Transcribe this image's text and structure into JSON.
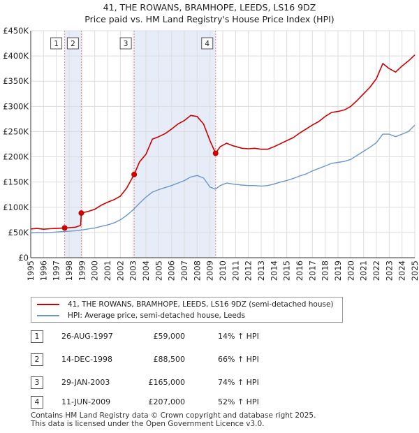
{
  "title_line1": "41, THE ROWANS, BRAMHOPE, LEEDS, LS16 9DZ",
  "title_line2": "Price paid vs. HM Land Registry's House Price Index (HPI)",
  "chart_data": {
    "type": "line",
    "x_range": [
      1995,
      2025
    ],
    "ylim": [
      0,
      450000
    ],
    "y_ticks": [
      0,
      50000,
      100000,
      150000,
      200000,
      250000,
      300000,
      350000,
      400000,
      450000
    ],
    "y_tick_labels": [
      "£0",
      "£50K",
      "£100K",
      "£150K",
      "£200K",
      "£250K",
      "£300K",
      "£350K",
      "£400K",
      "£450K"
    ],
    "x_ticks": [
      1995,
      1996,
      1997,
      1998,
      1999,
      2000,
      2001,
      2002,
      2003,
      2004,
      2005,
      2006,
      2007,
      2008,
      2009,
      2010,
      2011,
      2012,
      2013,
      2014,
      2015,
      2016,
      2017,
      2018,
      2019,
      2020,
      2021,
      2022,
      2023,
      2024,
      2025
    ],
    "grid": true,
    "shaded_ranges": [
      [
        1997.65,
        1998.95
      ],
      [
        2003.08,
        2009.44
      ]
    ],
    "series": [
      {
        "name": "41, THE ROWANS, BRAMHOPE, LEEDS, LS16 9DZ (semi-detached house)",
        "color": "#cc0000",
        "points": [
          [
            1995,
            57000
          ],
          [
            1995.5,
            58000
          ],
          [
            1996,
            56500
          ],
          [
            1996.5,
            57500
          ],
          [
            1997,
            58000
          ],
          [
            1997.65,
            59000
          ],
          [
            1998,
            59500
          ],
          [
            1998.5,
            60500
          ],
          [
            1998.9,
            64000
          ],
          [
            1998.95,
            88500
          ],
          [
            1999.5,
            92000
          ],
          [
            2000,
            96000
          ],
          [
            2000.5,
            104000
          ],
          [
            2001,
            110000
          ],
          [
            2001.5,
            115000
          ],
          [
            2002,
            122000
          ],
          [
            2002.5,
            138000
          ],
          [
            2003.08,
            165000
          ],
          [
            2003.5,
            190000
          ],
          [
            2004,
            205000
          ],
          [
            2004.5,
            235000
          ],
          [
            2005,
            240000
          ],
          [
            2005.5,
            246000
          ],
          [
            2006,
            255000
          ],
          [
            2006.5,
            265000
          ],
          [
            2007,
            272000
          ],
          [
            2007.5,
            282000
          ],
          [
            2008,
            280000
          ],
          [
            2008.5,
            265000
          ],
          [
            2009,
            232000
          ],
          [
            2009.44,
            207000
          ],
          [
            2009.8,
            220000
          ],
          [
            2010.3,
            227000
          ],
          [
            2010.8,
            222000
          ],
          [
            2011.5,
            217000
          ],
          [
            2012,
            216000
          ],
          [
            2012.5,
            217000
          ],
          [
            2013,
            215000
          ],
          [
            2013.5,
            215000
          ],
          [
            2014,
            220000
          ],
          [
            2014.5,
            226000
          ],
          [
            2015,
            232000
          ],
          [
            2015.5,
            238000
          ],
          [
            2016,
            247000
          ],
          [
            2016.5,
            255000
          ],
          [
            2017,
            263000
          ],
          [
            2017.5,
            270000
          ],
          [
            2018,
            280000
          ],
          [
            2018.5,
            288000
          ],
          [
            2019,
            290000
          ],
          [
            2019.5,
            293000
          ],
          [
            2020,
            300000
          ],
          [
            2020.5,
            312000
          ],
          [
            2021,
            325000
          ],
          [
            2021.5,
            338000
          ],
          [
            2022,
            355000
          ],
          [
            2022.5,
            385000
          ],
          [
            2023,
            375000
          ],
          [
            2023.5,
            368000
          ],
          [
            2024,
            380000
          ],
          [
            2024.5,
            390000
          ],
          [
            2025,
            402000
          ]
        ]
      },
      {
        "name": "HPI: Average price, semi-detached house, Leeds",
        "color": "#6a96cc",
        "points": [
          [
            1995,
            49000
          ],
          [
            1995.5,
            50000
          ],
          [
            1996,
            49500
          ],
          [
            1996.5,
            50000
          ],
          [
            1997,
            51000
          ],
          [
            1997.65,
            52000
          ],
          [
            1998,
            52500
          ],
          [
            1998.5,
            53500
          ],
          [
            1999,
            55000
          ],
          [
            1999.5,
            57000
          ],
          [
            2000,
            59000
          ],
          [
            2000.5,
            62000
          ],
          [
            2001,
            65000
          ],
          [
            2001.5,
            69000
          ],
          [
            2002,
            75000
          ],
          [
            2002.5,
            84000
          ],
          [
            2003,
            95000
          ],
          [
            2003.5,
            108000
          ],
          [
            2004,
            120000
          ],
          [
            2004.5,
            130000
          ],
          [
            2005,
            135000
          ],
          [
            2005.5,
            139000
          ],
          [
            2006,
            143000
          ],
          [
            2006.5,
            148000
          ],
          [
            2007,
            153000
          ],
          [
            2007.5,
            160000
          ],
          [
            2008,
            163000
          ],
          [
            2008.5,
            158000
          ],
          [
            2009,
            140000
          ],
          [
            2009.44,
            136000
          ],
          [
            2009.8,
            143000
          ],
          [
            2010.3,
            148000
          ],
          [
            2010.8,
            146000
          ],
          [
            2011.5,
            144000
          ],
          [
            2012,
            143000
          ],
          [
            2012.5,
            143000
          ],
          [
            2013,
            142000
          ],
          [
            2013.5,
            143000
          ],
          [
            2014,
            146000
          ],
          [
            2014.5,
            150000
          ],
          [
            2015,
            153000
          ],
          [
            2015.5,
            157000
          ],
          [
            2016,
            162000
          ],
          [
            2016.5,
            166000
          ],
          [
            2017,
            172000
          ],
          [
            2017.5,
            177000
          ],
          [
            2018,
            182000
          ],
          [
            2018.5,
            187000
          ],
          [
            2019,
            189000
          ],
          [
            2019.5,
            191000
          ],
          [
            2020,
            195000
          ],
          [
            2020.5,
            203000
          ],
          [
            2021,
            211000
          ],
          [
            2021.5,
            219000
          ],
          [
            2022,
            228000
          ],
          [
            2022.5,
            245000
          ],
          [
            2023,
            245000
          ],
          [
            2023.5,
            240000
          ],
          [
            2024,
            245000
          ],
          [
            2024.5,
            250000
          ],
          [
            2025,
            263000
          ]
        ]
      }
    ],
    "sales": [
      {
        "label": "1",
        "x": 1997.65,
        "y": 59000
      },
      {
        "label": "2",
        "x": 1998.95,
        "y": 88500
      },
      {
        "label": "3",
        "x": 2003.08,
        "y": 165000
      },
      {
        "label": "4",
        "x": 2009.44,
        "y": 207000
      }
    ]
  },
  "legend": {
    "red_label": "41, THE ROWANS, BRAMHOPE, LEEDS, LS16 9DZ (semi-detached house)",
    "blue_label": "HPI: Average price, semi-detached house, Leeds"
  },
  "transactions": [
    {
      "num": "1",
      "date": "26-AUG-1997",
      "price": "£59,000",
      "hpi": "14% ↑ HPI"
    },
    {
      "num": "2",
      "date": "14-DEC-1998",
      "price": "£88,500",
      "hpi": "66% ↑ HPI"
    },
    {
      "num": "3",
      "date": "29-JAN-2003",
      "price": "£165,000",
      "hpi": "74% ↑ HPI"
    },
    {
      "num": "4",
      "date": "11-JUN-2009",
      "price": "£207,000",
      "hpi": "52% ↑ HPI"
    }
  ],
  "footer": {
    "line1": "Contains HM Land Registry data © Crown copyright and database right 2025.",
    "line2": "This data is licensed under the Open Government Licence v3.0."
  },
  "colors": {
    "red": "#cc0000",
    "blue": "#6a96cc",
    "shade": "#e6ecf8",
    "grid": "#dddddd"
  }
}
